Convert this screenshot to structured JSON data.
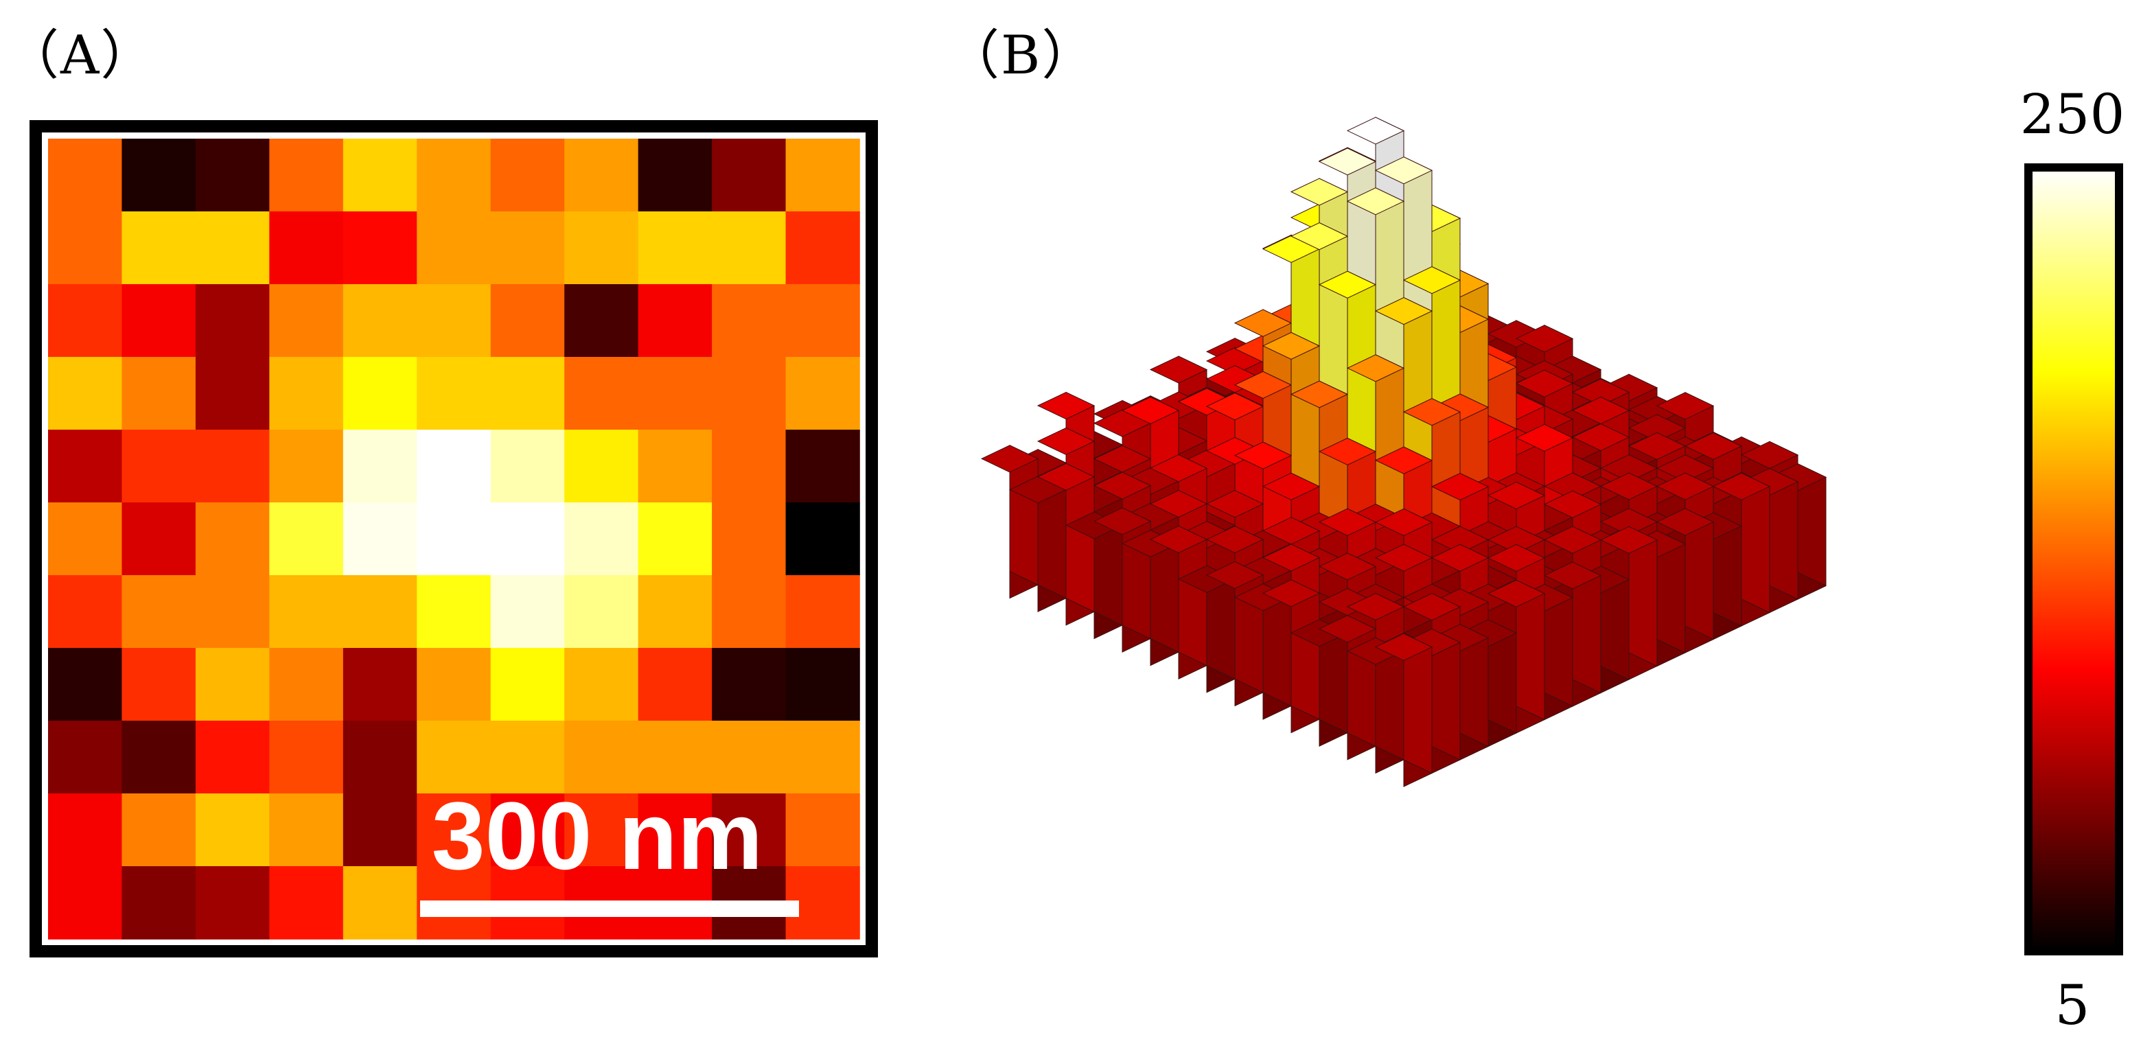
{
  "panels": {
    "a_label": "（A）",
    "b_label": "（B）"
  },
  "scale_bar": {
    "label": "300 nm"
  },
  "colorbar": {
    "max_label": "250",
    "min_label": "5"
  },
  "chart_data": [
    {
      "type": "heatmap",
      "panel": "A",
      "colormap": "hot",
      "vmin": 5,
      "vmax": 250,
      "values": [
        [
          130,
          15,
          25,
          130,
          170,
          150,
          130,
          150,
          20,
          50,
          150
        ],
        [
          130,
          170,
          170,
          90,
          95,
          150,
          150,
          160,
          170,
          170,
          110
        ],
        [
          110,
          90,
          60,
          140,
          160,
          160,
          130,
          30,
          90,
          130,
          130
        ],
        [
          165,
          140,
          60,
          160,
          185,
          170,
          170,
          130,
          130,
          130,
          150
        ],
        [
          70,
          110,
          110,
          150,
          240,
          250,
          230,
          180,
          150,
          130,
          25
        ],
        [
          140,
          80,
          140,
          200,
          245,
          255,
          255,
          235,
          190,
          130,
          5
        ],
        [
          110,
          140,
          140,
          160,
          160,
          190,
          240,
          220,
          160,
          130,
          120
        ],
        [
          20,
          110,
          160,
          140,
          60,
          150,
          185,
          160,
          110,
          20,
          15
        ],
        [
          50,
          35,
          100,
          120,
          50,
          160,
          160,
          150,
          150,
          150,
          150
        ],
        [
          90,
          140,
          165,
          150,
          50,
          110,
          90,
          110,
          90,
          60,
          130
        ],
        [
          90,
          50,
          60,
          100,
          160,
          110,
          100,
          90,
          90,
          40,
          110
        ]
      ]
    },
    {
      "type": "heatmap",
      "panel": "B",
      "style": "3d-bar",
      "colormap": "hot",
      "vmin": 5,
      "vmax": 250,
      "values": [
        [
          70,
          60,
          85,
          55,
          65,
          60,
          75,
          55,
          70,
          60,
          50,
          65,
          70,
          55,
          60
        ],
        [
          60,
          80,
          55,
          75,
          60,
          70,
          65,
          80,
          60,
          70,
          75,
          55,
          60,
          70,
          65
        ],
        [
          75,
          55,
          70,
          90,
          65,
          80,
          85,
          70,
          75,
          55,
          60,
          75,
          65,
          60,
          55
        ],
        [
          55,
          70,
          65,
          60,
          95,
          85,
          110,
          120,
          90,
          80,
          65,
          70,
          60,
          75,
          60
        ],
        [
          65,
          60,
          80,
          75,
          100,
          140,
          175,
          185,
          150,
          120,
          90,
          60,
          70,
          55,
          65
        ],
        [
          60,
          75,
          55,
          90,
          120,
          190,
          215,
          225,
          195,
          150,
          100,
          75,
          65,
          60,
          70
        ],
        [
          70,
          65,
          75,
          95,
          150,
          205,
          240,
          250,
          215,
          170,
          110,
          70,
          55,
          65,
          60
        ],
        [
          55,
          70,
          60,
          85,
          130,
          185,
          225,
          235,
          200,
          155,
          105,
          65,
          75,
          60,
          55
        ],
        [
          65,
          60,
          75,
          70,
          105,
          145,
          170,
          180,
          150,
          115,
          85,
          70,
          60,
          70,
          65
        ],
        [
          60,
          75,
          65,
          80,
          75,
          100,
          120,
          115,
          95,
          80,
          70,
          60,
          75,
          55,
          60
        ],
        [
          70,
          55,
          70,
          65,
          80,
          70,
          85,
          75,
          70,
          90,
          65,
          75,
          55,
          65,
          70
        ],
        [
          55,
          65,
          60,
          75,
          60,
          70,
          65,
          80,
          60,
          70,
          60,
          65,
          70,
          60,
          55
        ],
        [
          65,
          70,
          55,
          60,
          75,
          55,
          70,
          60,
          75,
          55,
          70,
          60,
          65,
          70,
          60
        ],
        [
          60,
          55,
          70,
          65,
          60,
          75,
          55,
          70,
          60,
          65,
          55,
          70,
          60,
          55,
          65
        ],
        [
          70,
          65,
          60,
          55,
          70,
          60,
          65,
          55,
          70,
          60,
          65,
          55,
          70,
          65,
          60
        ]
      ]
    }
  ]
}
